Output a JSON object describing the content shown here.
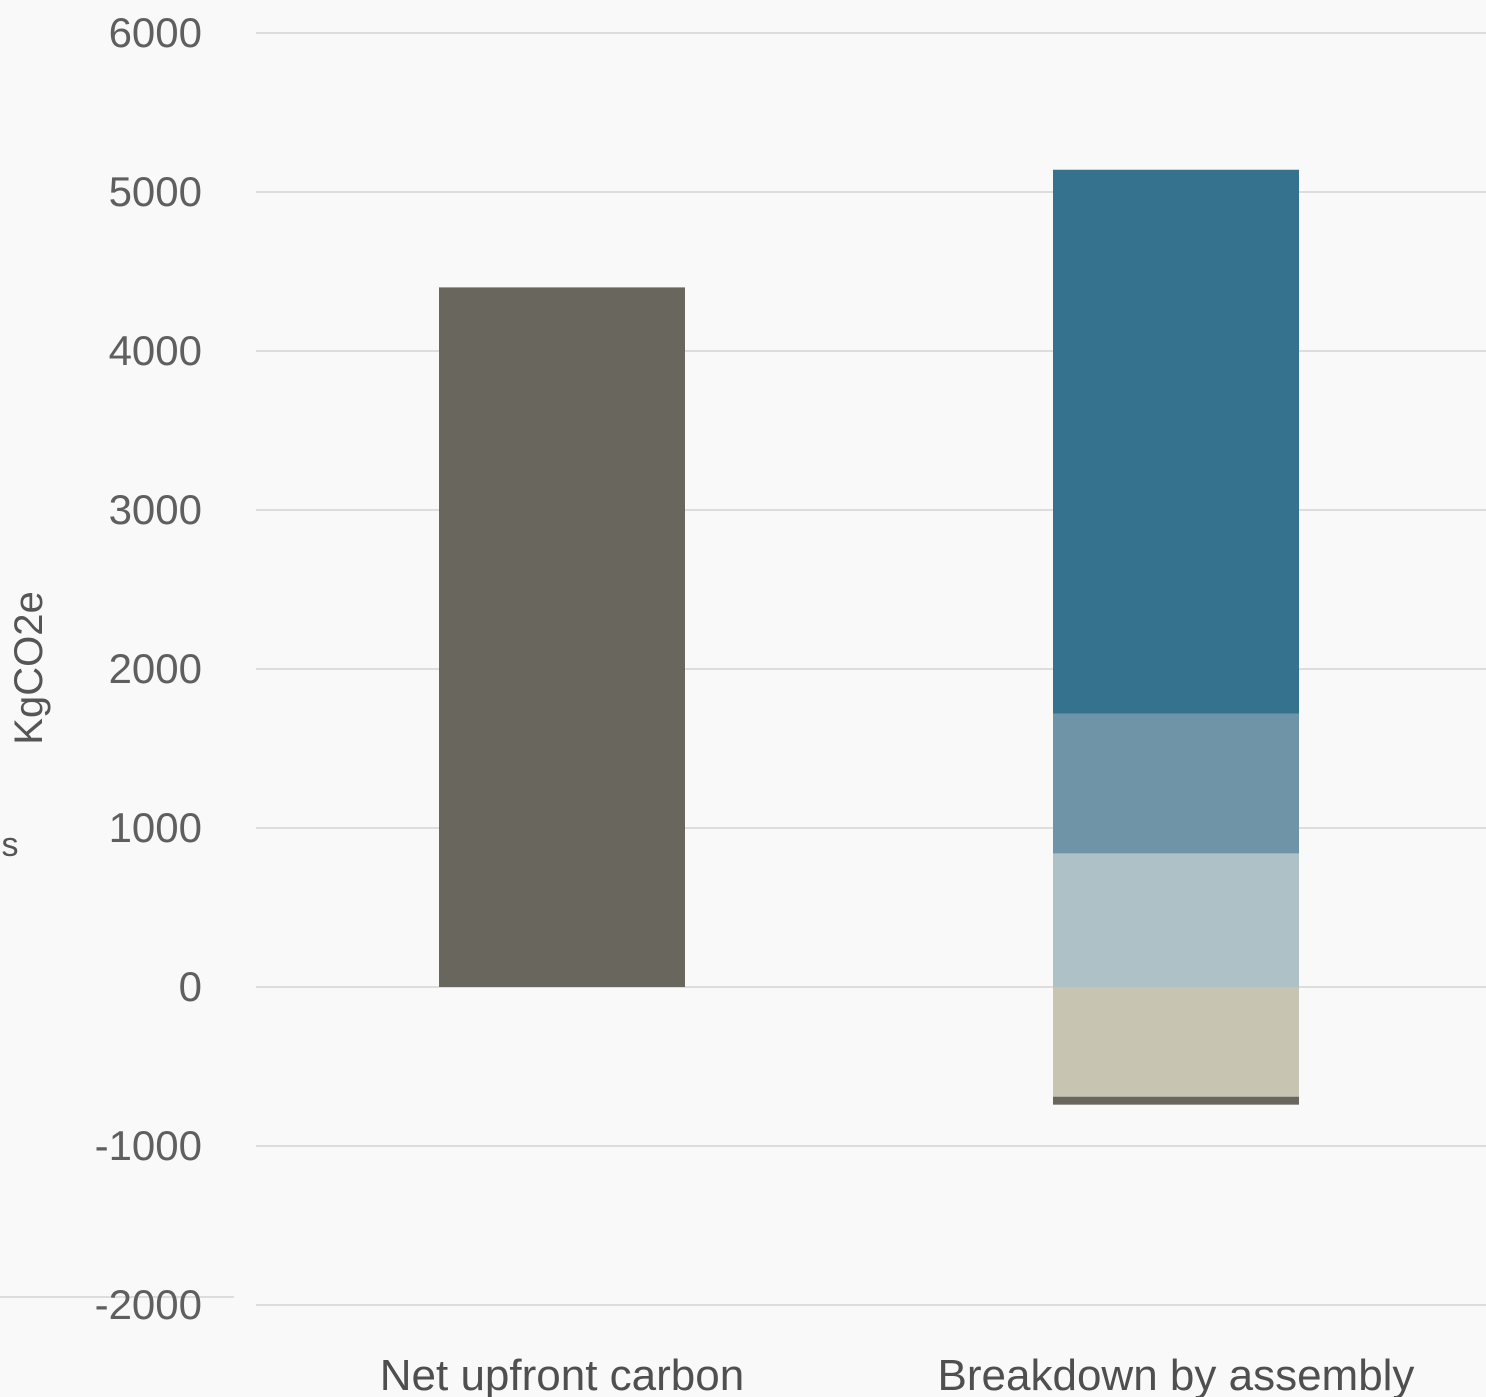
{
  "chart_data": {
    "type": "bar",
    "stacked": true,
    "ylabel": "KgCO2e",
    "ylim": [
      -2000,
      6000
    ],
    "yticks": [
      6000,
      5000,
      4000,
      3000,
      2000,
      1000,
      0,
      -1000,
      -2000
    ],
    "categories": [
      "Net upfront carbon",
      "Breakdown by assembly"
    ],
    "grid": true,
    "partial_label_left": "ls",
    "colors": {
      "grid": "#dddddd",
      "background": "#f9f9f9"
    },
    "bars": [
      {
        "category": "Net upfront carbon",
        "segments": [
          {
            "start": 0,
            "end": 4400,
            "color": "#69665e"
          }
        ]
      },
      {
        "category": "Breakdown by assembly",
        "segments": [
          {
            "start": 1720,
            "end": 5140,
            "color": "#35728d"
          },
          {
            "start": 840,
            "end": 1720,
            "color": "#6f94a8"
          },
          {
            "start": 0,
            "end": 840,
            "color": "#aec1c7"
          },
          {
            "start": -690,
            "end": 0,
            "color": "#c7c4b2"
          },
          {
            "start": -740,
            "end": -690,
            "color": "#69665e"
          }
        ]
      }
    ]
  }
}
